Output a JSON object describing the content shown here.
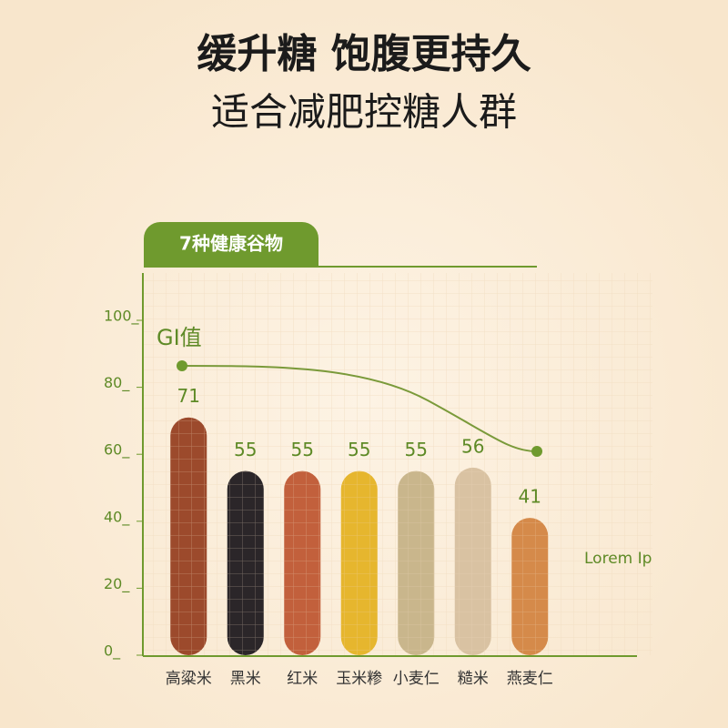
{
  "headline": "缓升糖 饱腹更持久",
  "subheadline": "适合减肥控糖人群",
  "tab_label": "7种健康谷物",
  "chart_data": {
    "type": "bar",
    "series_label": "GI值",
    "side_note": "Lorem Ip",
    "categories": [
      "高粱米",
      "黑米",
      "红米",
      "玉米糁",
      "小麦仁",
      "糙米",
      "燕麦仁"
    ],
    "values": [
      71,
      55,
      55,
      55,
      55,
      56,
      41
    ],
    "colors": [
      "#9c4a2c",
      "#2b2629",
      "#c2603c",
      "#e6b62e",
      "#c9b68c",
      "#d9c2a2",
      "#d58a4a"
    ],
    "ylim": [
      0,
      100
    ],
    "yticks": [
      {
        "value": 0,
        "label": "0_"
      },
      {
        "value": 20,
        "label": "20_"
      },
      {
        "value": 40,
        "label": "40_"
      },
      {
        "value": 60,
        "label": "60_"
      },
      {
        "value": 80,
        "label": "80_"
      },
      {
        "value": 100,
        "label": "100_"
      }
    ],
    "grid": true
  }
}
